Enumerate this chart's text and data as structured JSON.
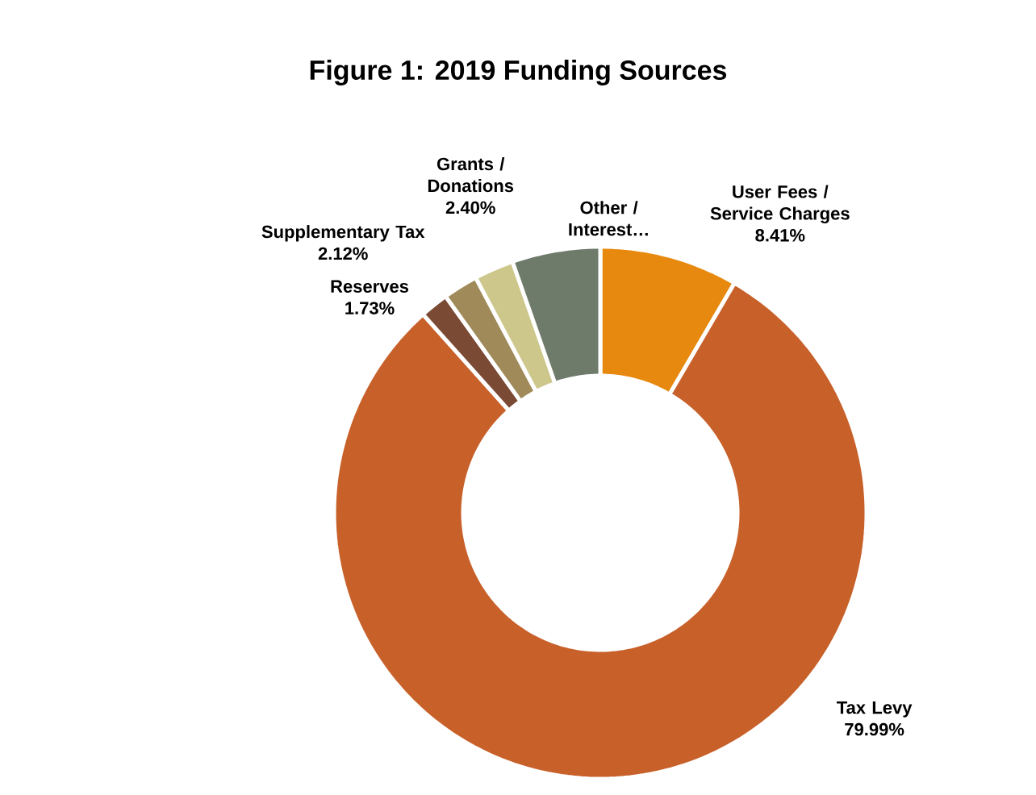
{
  "chart_data": {
    "type": "donut",
    "title": "Figure 1: 2019 Funding Sources",
    "categories": [
      "User Fees / Service Charges",
      "Tax Levy",
      "Reserves",
      "Supplementary Tax",
      "Grants / Donations",
      "Other / Interest…"
    ],
    "values": [
      8.41,
      79.99,
      1.73,
      2.12,
      2.4,
      5.35
    ],
    "value_labels": [
      "8.41%",
      "79.99%",
      "1.73%",
      "2.12%",
      "2.40%",
      null
    ],
    "colors": [
      "#e8890f",
      "#c8602a",
      "#7a4a35",
      "#a08a5a",
      "#cdc78c",
      "#6e7a6a"
    ]
  }
}
